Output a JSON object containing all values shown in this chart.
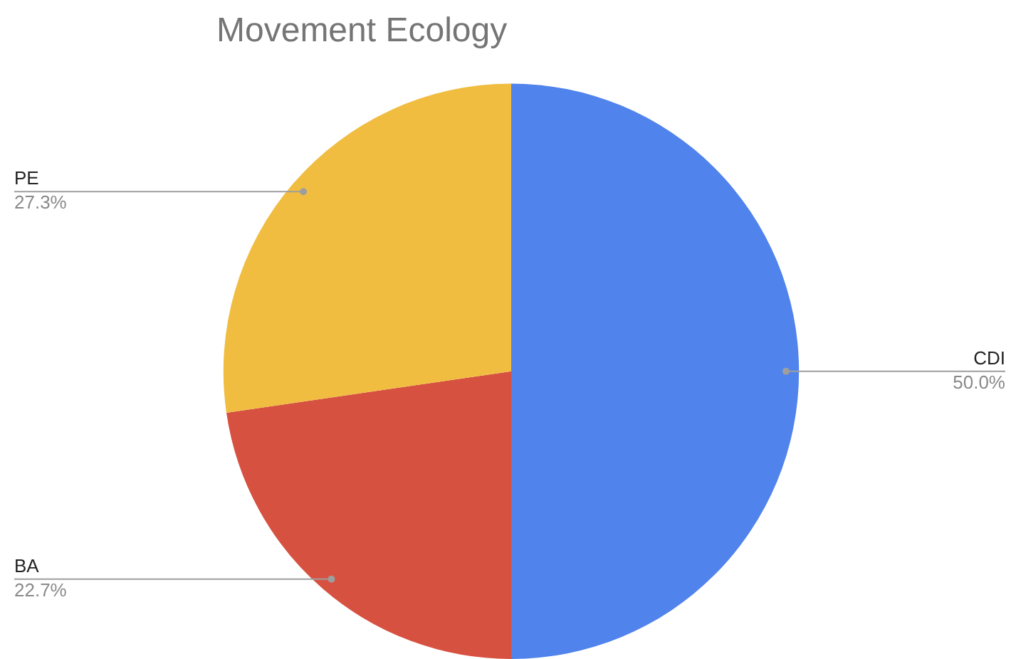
{
  "chart_data": {
    "type": "pie",
    "title": "Movement Ecology",
    "categories": [
      "CDI",
      "BA",
      "PE"
    ],
    "values": [
      50.0,
      22.7,
      27.3
    ],
    "value_labels": [
      "50.0%",
      "22.7%",
      "27.3%"
    ],
    "colors": [
      "#5083ec",
      "#d75140",
      "#f0bd41"
    ],
    "legend": false
  }
}
